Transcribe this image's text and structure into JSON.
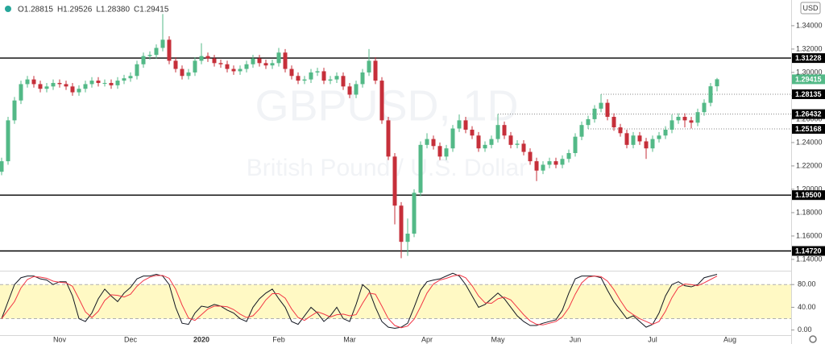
{
  "chart_data": [
    {
      "type": "candlestick",
      "symbol": "GBPUSD, 1D",
      "description": "British Pound / U.S. Dollar",
      "currency": "USD",
      "ohlc_legend": [
        {
          "key": "O",
          "text": "1.28815"
        },
        {
          "key": "H",
          "text": "1.29526"
        },
        {
          "key": "L",
          "text": "1.28380"
        },
        {
          "key": "C",
          "text": "1.29415"
        }
      ],
      "categories": [
        null,
        null,
        null,
        null,
        null,
        null,
        null,
        null,
        null,
        "Nov",
        null,
        null,
        null,
        null,
        null,
        null,
        null,
        null,
        null,
        null,
        "Dec",
        null,
        null,
        null,
        null,
        null,
        null,
        null,
        null,
        null,
        null,
        "2020",
        null,
        null,
        null,
        null,
        null,
        null,
        null,
        null,
        null,
        null,
        null,
        "Feb",
        null,
        null,
        null,
        null,
        null,
        null,
        null,
        null,
        null,
        null,
        "Mar",
        null,
        null,
        null,
        null,
        null,
        null,
        null,
        null,
        null,
        null,
        null,
        "Apr",
        null,
        null,
        null,
        null,
        null,
        null,
        null,
        null,
        null,
        null,
        "May",
        null,
        null,
        null,
        null,
        null,
        null,
        null,
        null,
        null,
        null,
        null,
        "Jun",
        null,
        null,
        null,
        null,
        null,
        null,
        null,
        null,
        null,
        null,
        null,
        "Jul",
        null,
        null,
        null,
        null,
        null,
        null,
        null,
        null,
        null,
        null,
        null,
        "Aug"
      ],
      "open": [
        1.215,
        1.224,
        1.259,
        1.276,
        1.29,
        1.294,
        1.29,
        1.286,
        1.288,
        1.291,
        1.29,
        1.288,
        1.283,
        1.286,
        1.29,
        1.293,
        1.291,
        1.291,
        1.289,
        1.293,
        1.295,
        1.297,
        1.307,
        1.314,
        1.315,
        1.321,
        1.328,
        1.31,
        1.303,
        1.297,
        1.3,
        1.31,
        1.314,
        1.312,
        1.308,
        1.307,
        1.303,
        1.301,
        1.303,
        1.307,
        1.312,
        1.308,
        1.306,
        1.308,
        1.317,
        1.303,
        1.297,
        1.293,
        1.294,
        1.3,
        1.301,
        1.293,
        1.294,
        1.297,
        1.288,
        1.281,
        1.29,
        1.3,
        1.31,
        1.293,
        1.259,
        1.228,
        1.186,
        1.155,
        1.162,
        1.197,
        1.238,
        1.243,
        1.237,
        1.228,
        1.235,
        1.252,
        1.259,
        1.251,
        1.246,
        1.235,
        1.238,
        1.243,
        1.255,
        1.246,
        1.238,
        1.239,
        1.232,
        1.224,
        1.216,
        1.221,
        1.224,
        1.221,
        1.226,
        1.231,
        1.245,
        1.255,
        1.26,
        1.269,
        1.274,
        1.262,
        1.253,
        1.248,
        1.238,
        1.246,
        1.241,
        1.235,
        1.243,
        1.246,
        1.251,
        1.259,
        1.262,
        1.259,
        1.257,
        1.266,
        1.274,
        1.28815,
        null,
        null
      ],
      "high": [
        1.227,
        1.262,
        1.279,
        1.293,
        1.297,
        1.297,
        1.293,
        1.291,
        1.294,
        1.294,
        1.293,
        1.291,
        1.289,
        1.293,
        1.296,
        1.296,
        1.294,
        1.294,
        1.296,
        1.298,
        1.3,
        1.31,
        1.317,
        1.318,
        1.324,
        1.35,
        1.331,
        1.313,
        1.306,
        1.303,
        1.313,
        1.325,
        1.317,
        1.315,
        1.311,
        1.31,
        1.306,
        1.306,
        1.31,
        1.315,
        1.315,
        1.311,
        1.311,
        1.321,
        1.32,
        1.306,
        1.3,
        1.297,
        1.303,
        1.304,
        1.304,
        1.297,
        1.3,
        1.3,
        1.291,
        1.293,
        1.303,
        1.32,
        1.313,
        1.296,
        1.262,
        1.231,
        1.189,
        1.175,
        1.2,
        1.241,
        1.248,
        1.246,
        1.24,
        1.238,
        1.255,
        1.264,
        1.262,
        1.254,
        1.249,
        1.241,
        1.246,
        1.26432,
        1.258,
        1.249,
        1.242,
        1.242,
        1.235,
        1.227,
        1.224,
        1.227,
        1.227,
        1.229,
        1.234,
        1.248,
        1.258,
        1.263,
        1.272,
        1.28135,
        1.277,
        1.265,
        1.256,
        1.251,
        1.249,
        1.249,
        1.244,
        1.246,
        1.249,
        1.254,
        1.264,
        1.265,
        1.265,
        1.262,
        1.269,
        1.277,
        1.291,
        1.29526,
        null,
        null
      ],
      "low": [
        1.212,
        1.221,
        1.256,
        1.273,
        1.287,
        1.287,
        1.283,
        1.283,
        1.285,
        1.287,
        1.285,
        1.28,
        1.28,
        1.283,
        1.287,
        1.288,
        1.288,
        1.286,
        1.286,
        1.29,
        1.292,
        1.294,
        1.304,
        1.311,
        1.312,
        1.318,
        1.307,
        1.3,
        1.294,
        1.294,
        1.297,
        1.307,
        1.309,
        1.305,
        1.304,
        1.3,
        1.298,
        1.298,
        1.3,
        1.304,
        1.305,
        1.303,
        1.303,
        1.305,
        1.3,
        1.294,
        1.29,
        1.29,
        1.291,
        1.297,
        1.29,
        1.29,
        1.291,
        1.285,
        1.278,
        1.278,
        1.287,
        1.297,
        1.29,
        1.256,
        1.225,
        1.17,
        1.141,
        1.143,
        1.159,
        1.194,
        1.235,
        1.234,
        1.225,
        1.225,
        1.232,
        1.249,
        1.248,
        1.243,
        1.232,
        1.232,
        1.235,
        1.24,
        1.243,
        1.235,
        1.235,
        1.229,
        1.221,
        1.207,
        1.213,
        1.218,
        1.218,
        1.218,
        1.223,
        1.228,
        1.242,
        1.25168,
        1.257,
        1.266,
        1.259,
        1.25,
        1.245,
        1.235,
        1.235,
        1.238,
        1.226,
        1.232,
        1.24,
        1.243,
        1.248,
        1.256,
        1.253,
        1.252,
        1.254,
        1.263,
        1.271,
        1.2838,
        null,
        null
      ],
      "close": [
        1.224,
        1.259,
        1.276,
        1.29,
        1.294,
        1.29,
        1.286,
        1.288,
        1.291,
        1.29,
        1.288,
        1.283,
        1.286,
        1.29,
        1.293,
        1.291,
        1.291,
        1.289,
        1.293,
        1.295,
        1.297,
        1.307,
        1.314,
        1.315,
        1.321,
        1.328,
        1.31,
        1.303,
        1.297,
        1.3,
        1.31,
        1.314,
        1.312,
        1.308,
        1.307,
        1.303,
        1.301,
        1.303,
        1.307,
        1.312,
        1.308,
        1.306,
        1.308,
        1.317,
        1.303,
        1.297,
        1.293,
        1.294,
        1.3,
        1.301,
        1.293,
        1.294,
        1.297,
        1.288,
        1.281,
        1.29,
        1.3,
        1.31,
        1.293,
        1.259,
        1.228,
        1.186,
        1.155,
        1.162,
        1.197,
        1.238,
        1.243,
        1.237,
        1.228,
        1.235,
        1.252,
        1.259,
        1.251,
        1.246,
        1.235,
        1.238,
        1.243,
        1.255,
        1.246,
        1.238,
        1.239,
        1.232,
        1.224,
        1.216,
        1.221,
        1.224,
        1.221,
        1.226,
        1.231,
        1.245,
        1.255,
        1.26,
        1.269,
        1.274,
        1.262,
        1.253,
        1.248,
        1.238,
        1.246,
        1.241,
        1.235,
        1.243,
        1.246,
        1.251,
        1.259,
        1.262,
        1.259,
        1.257,
        1.266,
        1.274,
        1.28815,
        1.29415,
        null,
        null
      ],
      "up_color": "#53b987",
      "down_color": "#c62f3a",
      "last_color": "#53b987",
      "ylim": [
        1.131,
        1.362
      ],
      "yticks": [
        {
          "value": 1.14,
          "label": "1.14000"
        },
        {
          "value": 1.16,
          "label": "1.16000"
        },
        {
          "value": 1.18,
          "label": "1.18000"
        },
        {
          "value": 1.2,
          "label": "1.20000"
        },
        {
          "value": 1.22,
          "label": "1.22000"
        },
        {
          "value": 1.24,
          "label": "1.24000"
        },
        {
          "value": 1.26,
          "label": "1.26000"
        },
        {
          "value": 1.28,
          "label": "1.28000"
        },
        {
          "value": 1.3,
          "label": "1.30000"
        },
        {
          "value": 1.32,
          "label": "1.32000"
        },
        {
          "value": 1.34,
          "label": "1.34000"
        }
      ],
      "levels": [
        1.31228,
        {
          "value": 1.195,
          "label": "1.19500"
        },
        {
          "value": 1.1472,
          "label": "1.14720"
        }
      ],
      "dotted_levels": [
        1.28135,
        1.26432,
        1.25168
      ]
    },
    {
      "type": "line",
      "series": [
        {
          "color": "#131722",
          "values": [
            20,
            50,
            80,
            92,
            95,
            95,
            90,
            88,
            80,
            85,
            85,
            60,
            20,
            15,
            30,
            55,
            72,
            60,
            50,
            65,
            75,
            90,
            95,
            95,
            98,
            95,
            80,
            40,
            12,
            10,
            30,
            42,
            40,
            45,
            42,
            35,
            30,
            20,
            15,
            40,
            55,
            65,
            72,
            55,
            40,
            15,
            10,
            25,
            40,
            30,
            15,
            25,
            40,
            20,
            15,
            45,
            80,
            70,
            40,
            15,
            5,
            3,
            5,
            12,
            40,
            70,
            85,
            88,
            90,
            95,
            100,
            95,
            80,
            60,
            40,
            45,
            55,
            65,
            55,
            40,
            25,
            15,
            8,
            8,
            12,
            15,
            18,
            35,
            65,
            90,
            95,
            95,
            95,
            92,
            70,
            50,
            35,
            20,
            25,
            15,
            5,
            10,
            30,
            60,
            80,
            85,
            78,
            76,
            80,
            92,
            95,
            98,
            null,
            null
          ]
        },
        {
          "color": "#f23645",
          "values": [
            20,
            35,
            50,
            74,
            89,
            94,
            93,
            91,
            86,
            84,
            83,
            77,
            55,
            32,
            22,
            33,
            52,
            62,
            61,
            58,
            63,
            77,
            87,
            93,
            96,
            96,
            91,
            72,
            44,
            21,
            17,
            27,
            37,
            42,
            42,
            41,
            36,
            28,
            22,
            25,
            37,
            53,
            64,
            64,
            56,
            37,
            22,
            17,
            25,
            32,
            28,
            23,
            27,
            28,
            25,
            27,
            47,
            65,
            63,
            42,
            20,
            8,
            4,
            7,
            19,
            41,
            65,
            81,
            88,
            91,
            95,
            97,
            92,
            78,
            60,
            48,
            47,
            55,
            58,
            53,
            40,
            27,
            16,
            10,
            9,
            12,
            15,
            23,
            39,
            63,
            83,
            93,
            95,
            94,
            86,
            71,
            52,
            35,
            27,
            20,
            15,
            10,
            15,
            33,
            57,
            75,
            81,
            80,
            78,
            83,
            89,
            95,
            null,
            null
          ]
        }
      ],
      "band": [
        20,
        80
      ],
      "band_color": "#fff9c4",
      "ylim": [
        -9,
        103
      ],
      "yticks": [
        {
          "value": 0,
          "label": "0.00"
        },
        {
          "value": 40,
          "label": "40.00"
        },
        {
          "value": 80,
          "label": "80.00"
        }
      ]
    }
  ]
}
